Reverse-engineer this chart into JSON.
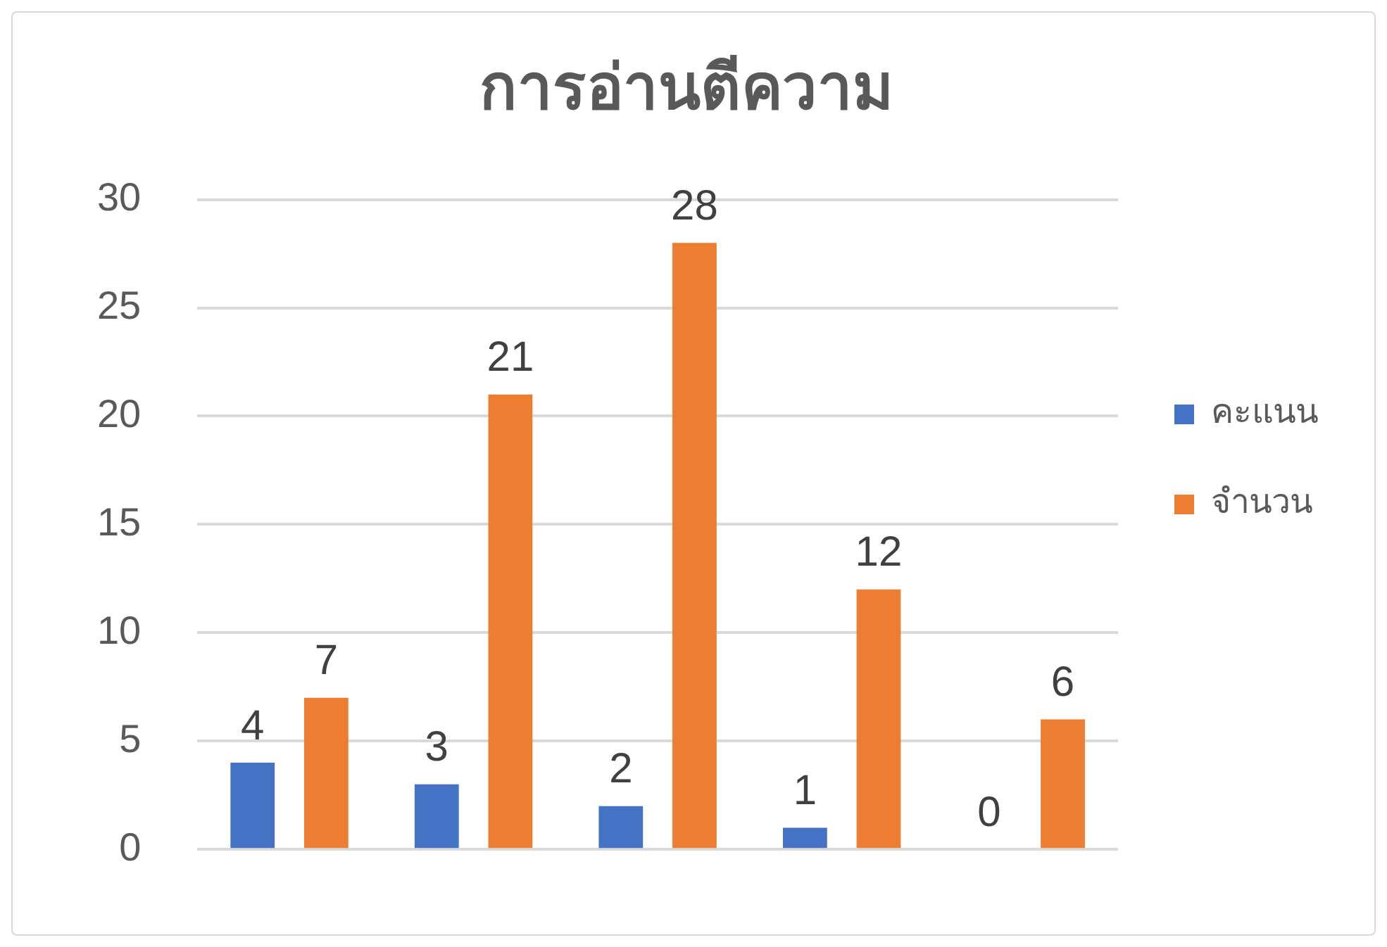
{
  "chart_data": {
    "type": "bar",
    "title": "การอ่านตีความ",
    "categories": [
      null,
      null,
      null,
      null,
      null
    ],
    "series": [
      {
        "name": "คะแนน",
        "color": "#4472c4",
        "values": [
          4,
          3,
          2,
          1,
          0
        ]
      },
      {
        "name": "จำนวน",
        "color": "#ed7d31",
        "values": [
          7,
          21,
          28,
          12,
          6
        ]
      }
    ],
    "ylim": [
      0,
      30
    ],
    "yticks": [
      0,
      5,
      10,
      15,
      20,
      25,
      30
    ],
    "grid": "y",
    "legend": "right",
    "data_labels": true
  }
}
